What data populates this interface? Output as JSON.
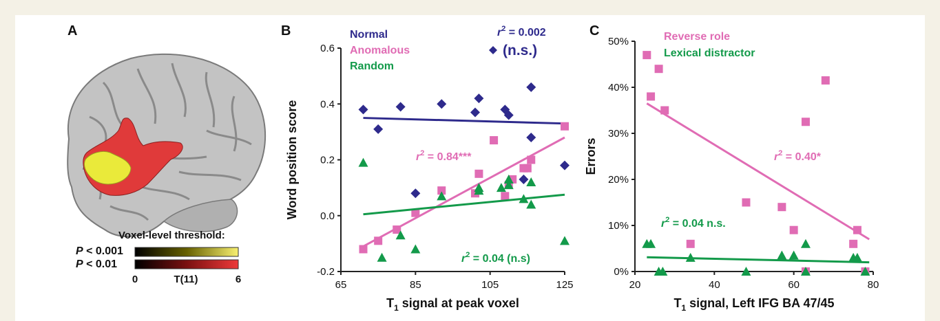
{
  "panels": {
    "A": {
      "label": "A",
      "colorbar": {
        "title": "Voxel-level threshold:",
        "rows": [
          {
            "p_symbol": "P",
            "p_text": " < 0.001",
            "gradient": [
              "#000000",
              "#666000",
              "#f8f070"
            ]
          },
          {
            "p_symbol": "P",
            "p_text": " < 0.01",
            "gradient": [
              "#000000",
              "#7a1010",
              "#ee3a3a"
            ]
          }
        ],
        "tick_min": "0",
        "tick_mid": "T(11)",
        "tick_max": "6"
      },
      "brain": {
        "base_color": "#bdbdbd",
        "cluster_low": "#e03a3a",
        "cluster_high": "#eaea3a"
      }
    },
    "B": {
      "label": "B"
    },
    "C": {
      "label": "C"
    }
  },
  "chart_data": [
    {
      "panel": "B",
      "type": "scatter",
      "xlabel_main": "T",
      "xlabel_sub": "1",
      "xlabel_rest": " signal at peak voxel",
      "ylabel": "Word position score",
      "xlim": [
        65,
        125
      ],
      "ylim": [
        -0.2,
        0.6
      ],
      "xticks": [
        65,
        85,
        105,
        125
      ],
      "yticks": [
        "-0.2",
        "0.0",
        "0.2",
        "0.4",
        "0.6"
      ],
      "ytick_values": [
        -0.2,
        0.0,
        0.2,
        0.4,
        0.6
      ],
      "legend": [
        {
          "text": "Normal",
          "color": "#2e2a8c"
        },
        {
          "text": "Anomalous",
          "color": "#e06cb4"
        },
        {
          "text": "Random",
          "color": "#139a4a"
        }
      ],
      "annotations": [
        {
          "r": "r",
          "sup": "2",
          "rest": " = 0.002",
          "color": "#2e2a8c"
        },
        {
          "text": "(n.s.)",
          "color": "#2e2a8c"
        },
        {
          "r": "r",
          "sup": "2",
          "rest": " = 0.84***",
          "color": "#e06cb4"
        },
        {
          "r": "r",
          "sup": "2",
          "rest": " = 0.04 (n.s)",
          "color": "#139a4a"
        }
      ],
      "series": [
        {
          "name": "Normal",
          "marker": "diamond",
          "color": "#2e2a8c",
          "points": [
            [
              71,
              0.38
            ],
            [
              75,
              0.31
            ],
            [
              81,
              0.39
            ],
            [
              85,
              0.08
            ],
            [
              92,
              0.4
            ],
            [
              101,
              0.37
            ],
            [
              102,
              0.42
            ],
            [
              109,
              0.38
            ],
            [
              110,
              0.36
            ],
            [
              114,
              0.13
            ],
            [
              116,
              0.46
            ],
            [
              116,
              0.28
            ],
            [
              125,
              0.18
            ]
          ],
          "fit": [
            [
              71,
              0.35
            ],
            [
              125,
              0.33
            ]
          ]
        },
        {
          "name": "Anomalous",
          "marker": "square",
          "color": "#e06cb4",
          "points": [
            [
              71,
              -0.12
            ],
            [
              75,
              -0.09
            ],
            [
              80,
              -0.05
            ],
            [
              85,
              0.01
            ],
            [
              92,
              0.09
            ],
            [
              101,
              0.08
            ],
            [
              102,
              0.15
            ],
            [
              106,
              0.27
            ],
            [
              109,
              0.07
            ],
            [
              110,
              0.11
            ],
            [
              111,
              0.13
            ],
            [
              114,
              0.17
            ],
            [
              115,
              0.17
            ],
            [
              116,
              0.2
            ],
            [
              125,
              0.32
            ]
          ],
          "fit": [
            [
              71,
              -0.11
            ],
            [
              125,
              0.28
            ]
          ]
        },
        {
          "name": "Random",
          "marker": "triangle",
          "color": "#139a4a",
          "points": [
            [
              71,
              0.19
            ],
            [
              76,
              -0.15
            ],
            [
              81,
              -0.07
            ],
            [
              85,
              -0.12
            ],
            [
              92,
              0.07
            ],
            [
              102,
              0.1
            ],
            [
              102,
              0.09
            ],
            [
              108,
              0.1
            ],
            [
              110,
              0.13
            ],
            [
              110,
              0.11
            ],
            [
              114,
              0.06
            ],
            [
              116,
              0.04
            ],
            [
              116,
              0.12
            ],
            [
              125,
              -0.09
            ]
          ],
          "fit": [
            [
              71,
              0.005
            ],
            [
              125,
              0.075
            ]
          ]
        }
      ]
    },
    {
      "panel": "C",
      "type": "scatter",
      "xlabel_main": "T",
      "xlabel_sub": "1",
      "xlabel_rest": " signal, Left IFG BA 47/45",
      "ylabel": "Errors",
      "xlim": [
        20,
        80
      ],
      "ylim": [
        0,
        50
      ],
      "xticks": [
        20,
        40,
        60,
        80
      ],
      "yticks": [
        "0%",
        "10%",
        "20%",
        "30%",
        "40%",
        "50%"
      ],
      "ytick_values": [
        0,
        10,
        20,
        30,
        40,
        50
      ],
      "legend": [
        {
          "text": "Reverse role",
          "color": "#e06cb4"
        },
        {
          "text": "Lexical distractor",
          "color": "#139a4a"
        }
      ],
      "annotations": [
        {
          "r": "r",
          "sup": "2",
          "rest": " = 0.40*",
          "color": "#e06cb4"
        },
        {
          "r": "r",
          "sup": "2",
          "rest": " = 0.04 n.s.",
          "color": "#139a4a"
        }
      ],
      "series": [
        {
          "name": "Reverse role",
          "marker": "square",
          "color": "#e06cb4",
          "points": [
            [
              23,
              47
            ],
            [
              24,
              38
            ],
            [
              26,
              44
            ],
            [
              27.5,
              35
            ],
            [
              34,
              6
            ],
            [
              48,
              15
            ],
            [
              57,
              14
            ],
            [
              60,
              9
            ],
            [
              63,
              32.5
            ],
            [
              63,
              0
            ],
            [
              68,
              41.5
            ],
            [
              75,
              6
            ],
            [
              76,
              9
            ],
            [
              78,
              0
            ]
          ],
          "fit": [
            [
              23,
              36.5
            ],
            [
              79,
              7
            ]
          ]
        },
        {
          "name": "Lexical distractor",
          "marker": "triangle",
          "color": "#139a4a",
          "points": [
            [
              23,
              6
            ],
            [
              24,
              6
            ],
            [
              26,
              0
            ],
            [
              27,
              0
            ],
            [
              34,
              3
            ],
            [
              48,
              0
            ],
            [
              57,
              3.5
            ],
            [
              60,
              3.5
            ],
            [
              63,
              6
            ],
            [
              63,
              0
            ],
            [
              75,
              3
            ],
            [
              76,
              3
            ],
            [
              78,
              0
            ]
          ],
          "fit": [
            [
              23,
              3.1
            ],
            [
              79,
              2
            ]
          ]
        }
      ]
    }
  ]
}
